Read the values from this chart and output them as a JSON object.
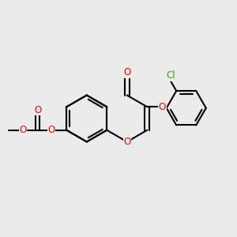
{
  "background_color": "#ebebeb",
  "bond_color": "#000000",
  "O_color": "#ff0000",
  "Cl_color": "#33aa00",
  "bond_width": 1.5,
  "figsize": [
    3.0,
    3.0
  ],
  "dpi": 100,
  "xlim": [
    -4.5,
    5.5
  ],
  "ylim": [
    -3.5,
    3.5
  ]
}
